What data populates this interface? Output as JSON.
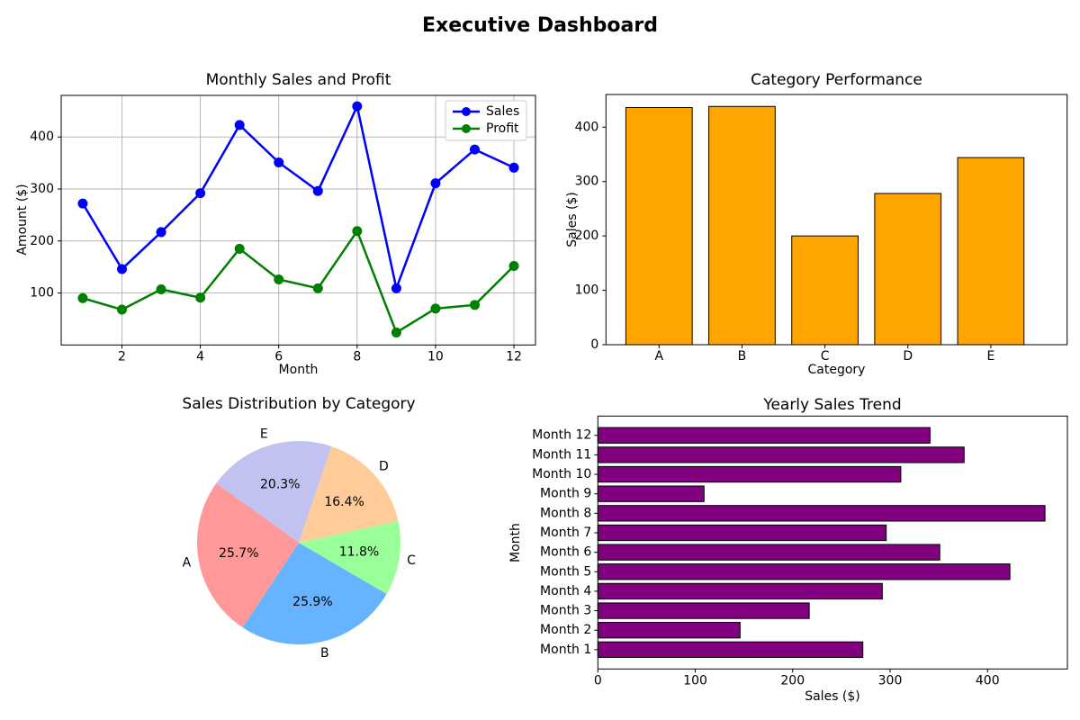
{
  "suptitle": "Executive Dashboard",
  "colors": {
    "background": "#ffffff",
    "grid": "#b0b0b0",
    "text": "#000000"
  },
  "chart_data": [
    {
      "type": "line",
      "title": "Monthly Sales and Profit",
      "xlabel": "Month",
      "ylabel": "Amount ($)",
      "x": [
        1,
        2,
        3,
        4,
        5,
        6,
        7,
        8,
        9,
        10,
        11,
        12
      ],
      "series": [
        {
          "name": "Sales",
          "color": "#0000ff",
          "values": [
            272,
            146,
            217,
            292,
            423,
            351,
            296,
            459,
            109,
            311,
            376,
            341
          ]
        },
        {
          "name": "Profit",
          "color": "#008000",
          "values": [
            90,
            68,
            107,
            91,
            185,
            126,
            109,
            219,
            24,
            70,
            77,
            152
          ]
        }
      ],
      "xlim": [
        0.45,
        12.55
      ],
      "ylim": [
        0,
        480
      ],
      "xticks": [
        2,
        4,
        6,
        8,
        10,
        12
      ],
      "yticks": [
        100,
        200,
        300,
        400
      ],
      "grid": true,
      "legend_position": "upper right"
    },
    {
      "type": "bar",
      "title": "Category Performance",
      "xlabel": "Category",
      "ylabel": "Sales ($)",
      "categories": [
        "A",
        "B",
        "C",
        "D",
        "E"
      ],
      "values": [
        436,
        438,
        200,
        278,
        344
      ],
      "bar_color": "#ffa500",
      "edge_color": "#000000",
      "ylim": [
        0,
        460
      ],
      "yticks": [
        0,
        100,
        200,
        300,
        400
      ],
      "grid": false
    },
    {
      "type": "pie",
      "title": "Sales Distribution by Category",
      "labels": [
        "A",
        "B",
        "C",
        "D",
        "E"
      ],
      "percents": [
        25.7,
        25.9,
        11.8,
        16.4,
        20.3
      ],
      "percent_labels": [
        "25.7%",
        "25.9%",
        "11.8%",
        "16.4%",
        "20.3%"
      ],
      "colors": [
        "#ff9999",
        "#66b3ff",
        "#99ff99",
        "#ffcc99",
        "#c2c2f0"
      ],
      "start_angle": 144,
      "counterclockwise": true
    },
    {
      "type": "hbar",
      "title": "Yearly Sales Trend",
      "xlabel": "Sales ($)",
      "ylabel": "Month",
      "categories": [
        "Month 1",
        "Month 2",
        "Month 3",
        "Month 4",
        "Month 5",
        "Month 6",
        "Month 7",
        "Month 8",
        "Month 9",
        "Month 10",
        "Month 11",
        "Month 12"
      ],
      "values": [
        272,
        146,
        217,
        292,
        423,
        351,
        296,
        459,
        109,
        311,
        376,
        341
      ],
      "bar_color": "#800080",
      "edge_color": "#000000",
      "xlim": [
        0,
        482
      ],
      "xticks": [
        0,
        100,
        200,
        300,
        400
      ],
      "grid": false
    }
  ]
}
